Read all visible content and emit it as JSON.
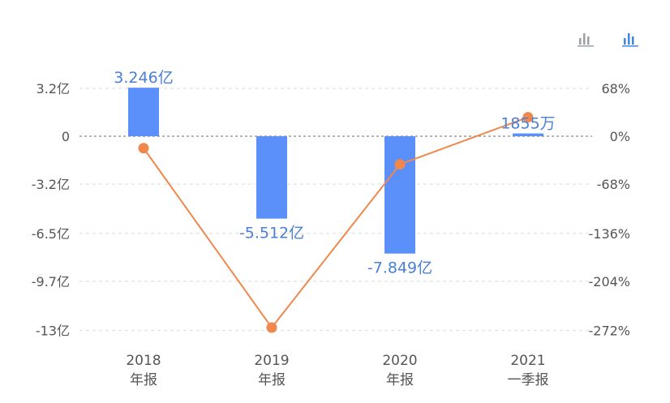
{
  "colors": {
    "bar": "#5b8ff9",
    "line": "#f0884e",
    "grid": "#d9d9d9",
    "zero_line": "#888888",
    "axis_text": "#555555",
    "bar_label": "#4a7fd6",
    "icon_inactive": "#9aa0a6",
    "icon_active": "#3f86e8"
  },
  "toolbar": {
    "icons": [
      "bar-chart-icon",
      "bar-chart-icon"
    ],
    "active_index": 1
  },
  "chart_data": {
    "type": "bar",
    "categories": [
      {
        "year": "2018",
        "period": "年报"
      },
      {
        "year": "2019",
        "period": "年报"
      },
      {
        "year": "2020",
        "period": "年报"
      },
      {
        "year": "2021",
        "period": "一季报"
      }
    ],
    "series": [
      {
        "type": "bar",
        "axis": "left",
        "values": [
          3.246,
          -5.512,
          -7.849,
          0.1855
        ],
        "labels": [
          "3.246亿",
          "-5.512亿",
          "-7.849亿",
          "1855万"
        ]
      },
      {
        "type": "line",
        "axis": "right",
        "values": [
          -17,
          -272,
          -40,
          27
        ]
      }
    ],
    "left_axis": {
      "ticks": [
        3.2,
        0,
        -3.2,
        -6.5,
        -9.7,
        -13
      ],
      "tick_labels": [
        "3.2亿",
        "0",
        "-3.2亿",
        "-6.5亿",
        "-9.7亿",
        "-13亿"
      ],
      "range": [
        -13,
        3.2
      ]
    },
    "right_axis": {
      "ticks": [
        68,
        0,
        -68,
        -136,
        -204,
        -272
      ],
      "tick_labels": [
        "68%",
        "0%",
        "-68%",
        "-136%",
        "-204%",
        "-272%"
      ],
      "range": [
        -272,
        68
      ]
    },
    "grid": true
  }
}
